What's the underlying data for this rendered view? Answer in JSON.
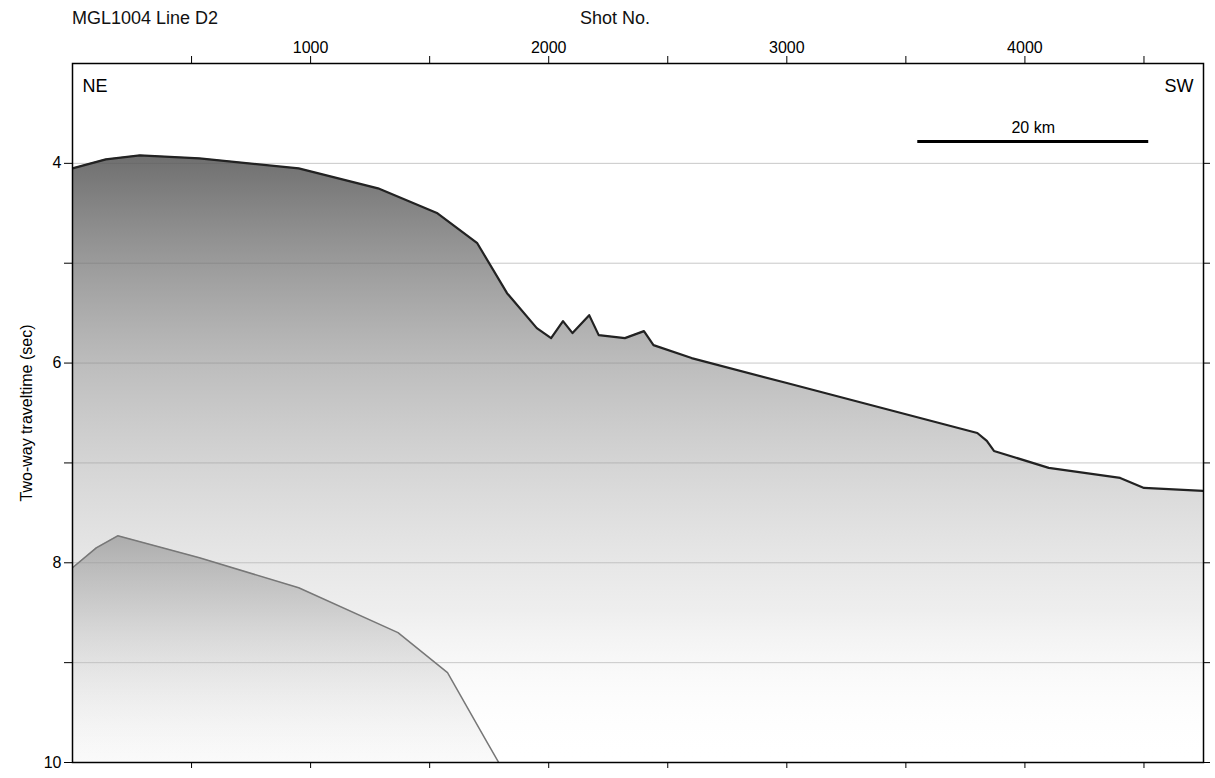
{
  "chart_data": {
    "type": "seismic_profile",
    "title": "MGL1004 Line D2",
    "x_label": "Shot No.",
    "y_label": "Two-way traveltime (sec)",
    "corner_labels": {
      "left": "NE",
      "right": "SW"
    },
    "xlim": [
      0,
      4750
    ],
    "xticks": [
      1000,
      2000,
      3000,
      4000
    ],
    "x_minor_ticks": [
      500,
      1500,
      2500,
      3500,
      4500
    ],
    "ylim": [
      3,
      10
    ],
    "yticks": [
      4,
      6,
      8,
      10
    ],
    "y_minor_ticks": [
      5,
      7,
      9
    ],
    "grid": true,
    "scale_bar": {
      "label": "20 km",
      "x": [
        3550,
        4520
      ],
      "y": 3.78
    },
    "series": [
      {
        "color": "#222222",
        "x": [
          0,
          140,
          283,
          533,
          950,
          1283,
          1533,
          1700,
          1825,
          1950,
          2010,
          2060,
          2100,
          2170,
          2210,
          2320,
          2400,
          2440,
          2600,
          3000,
          3400,
          3800,
          3840,
          3870,
          4100,
          4400,
          4500,
          4750
        ],
        "values": [
          4.05,
          3.96,
          3.92,
          3.95,
          4.05,
          4.25,
          4.5,
          4.8,
          5.3,
          5.65,
          5.75,
          5.58,
          5.7,
          5.52,
          5.72,
          5.75,
          5.68,
          5.82,
          5.95,
          6.2,
          6.45,
          6.7,
          6.78,
          6.88,
          7.05,
          7.15,
          7.25,
          7.28
        ]
      },
      {
        "color": "#777777",
        "x": [
          0,
          100,
          190,
          533,
          950,
          1367,
          1575,
          1742,
          1790
        ],
        "values": [
          8.05,
          7.85,
          7.73,
          7.95,
          8.25,
          8.7,
          9.1,
          9.8,
          10
        ]
      }
    ]
  }
}
